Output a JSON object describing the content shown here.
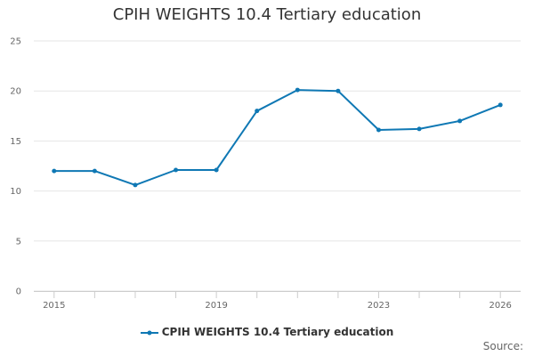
{
  "chart_data": {
    "type": "line",
    "title": "CPIH WEIGHTS 10.4 Tertiary education",
    "xlabel": "",
    "ylabel": "",
    "x": [
      2015,
      2016,
      2017,
      2018,
      2019,
      2020,
      2021,
      2022,
      2023,
      2024,
      2025,
      2026
    ],
    "x_tick_labels": [
      "2015",
      "2019",
      "2023",
      "2026"
    ],
    "x_tick_values": [
      2015,
      2019,
      2023,
      2026
    ],
    "y_ticks": [
      0,
      5,
      10,
      15,
      20,
      25
    ],
    "ylim": [
      0,
      25
    ],
    "xlim": [
      2014.5,
      2026.5
    ],
    "grid": "horizontal",
    "legend_position": "bottom",
    "series": [
      {
        "name": "CPIH WEIGHTS 10.4 Tertiary education",
        "color": "#1f77b4",
        "values": [
          12.0,
          12.0,
          10.6,
          12.1,
          12.1,
          18.0,
          20.1,
          20.0,
          16.1,
          16.2,
          17.0,
          18.6
        ]
      }
    ]
  },
  "source_label": "Source:"
}
